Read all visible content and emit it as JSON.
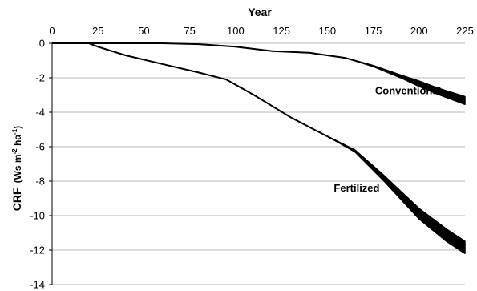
{
  "chart_data": {
    "type": "line",
    "xlabel": "Year",
    "ylabel_main": "CRF",
    "ylabel_units": "(Ws m",
    "ylabel_units_mid": " ha",
    "ylabel_units_end": ")",
    "ylabel_sup1": "-2",
    "ylabel_sup2": "-1",
    "xlim": [
      0,
      225
    ],
    "ylim": [
      -14,
      0
    ],
    "x_ticks": [
      0,
      25,
      50,
      75,
      100,
      125,
      150,
      175,
      200,
      225
    ],
    "y_ticks": [
      0,
      -2,
      -4,
      -6,
      -8,
      -10,
      -12,
      -14
    ],
    "x_axis_position": "top",
    "grid": "horizontal",
    "series": [
      {
        "name": "Conventional",
        "x": [
          0,
          20,
          40,
          60,
          80,
          100,
          120,
          140,
          160,
          175,
          190,
          200,
          210,
          225
        ],
        "y_upper": [
          0,
          0,
          0,
          0,
          -0.05,
          -0.2,
          -0.45,
          -0.55,
          -0.85,
          -1.3,
          -1.85,
          -2.2,
          -2.6,
          -3.1
        ],
        "y_lower": [
          0,
          0,
          0,
          0,
          -0.05,
          -0.2,
          -0.45,
          -0.55,
          -0.85,
          -1.35,
          -2.0,
          -2.5,
          -2.95,
          -3.55
        ]
      },
      {
        "name": "Fertilized",
        "x": [
          0,
          20,
          25,
          40,
          60,
          80,
          95,
          110,
          130,
          150,
          165,
          180,
          200,
          215,
          225
        ],
        "y_upper": [
          0,
          0,
          -0.2,
          -0.7,
          -1.2,
          -1.7,
          -2.1,
          -3.0,
          -4.3,
          -5.4,
          -6.2,
          -7.6,
          -9.6,
          -10.8,
          -11.5
        ],
        "y_lower": [
          0,
          0,
          -0.2,
          -0.7,
          -1.2,
          -1.7,
          -2.1,
          -3.0,
          -4.3,
          -5.4,
          -6.3,
          -7.9,
          -10.2,
          -11.5,
          -12.2
        ]
      }
    ],
    "annotations": [
      {
        "text": "Conventional",
        "x": 194,
        "y": -2.95
      },
      {
        "text": "Fertilized",
        "x": 166,
        "y": -8.6
      }
    ]
  }
}
